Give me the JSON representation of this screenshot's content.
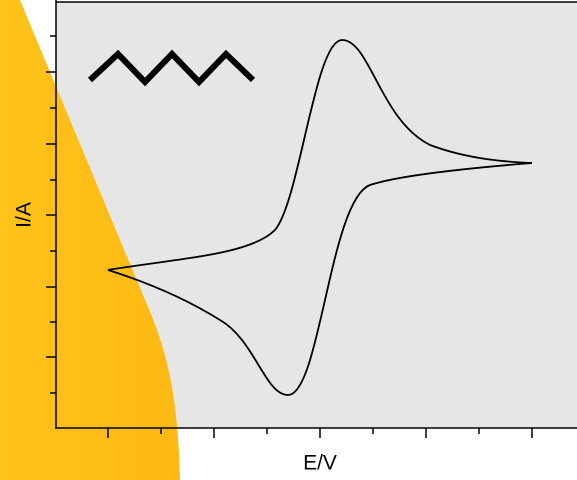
{
  "axes": {
    "x_label": "E/V",
    "y_label": "I/A"
  }
}
